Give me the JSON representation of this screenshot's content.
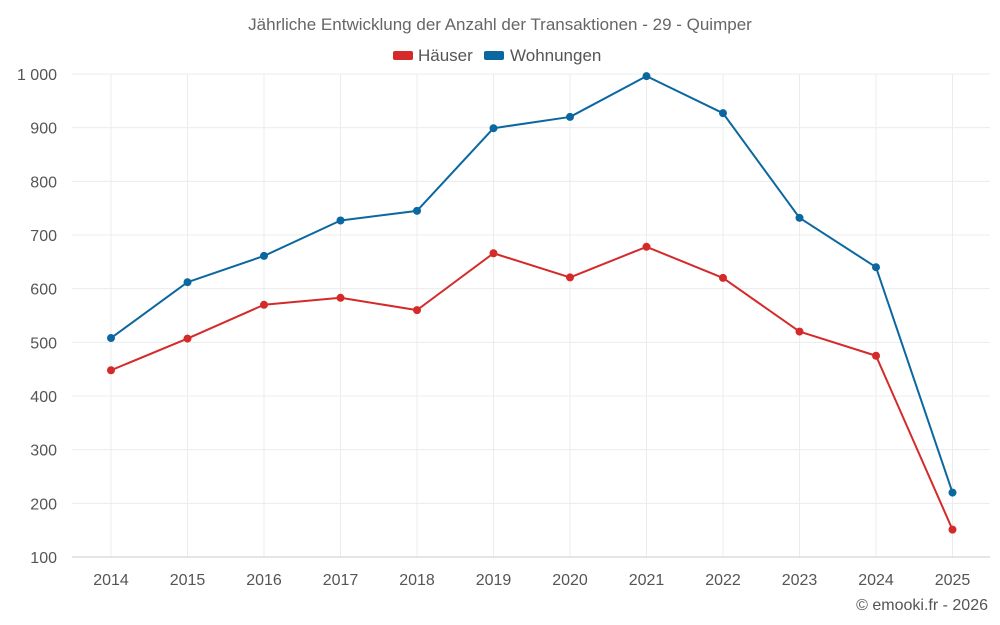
{
  "chart_data": {
    "type": "line",
    "title": "Jährliche Entwicklung der Anzahl der Transaktionen - 29 - Quimper",
    "categories": [
      "2014",
      "2015",
      "2016",
      "2017",
      "2018",
      "2019",
      "2020",
      "2021",
      "2022",
      "2023",
      "2024",
      "2025"
    ],
    "series": [
      {
        "name": "Häuser",
        "color": "#d42a2a",
        "values": [
          448,
          507,
          570,
          583,
          560,
          666,
          621,
          678,
          620,
          520,
          475,
          151
        ]
      },
      {
        "name": "Wohnungen",
        "color": "#0b67a0",
        "values": [
          508,
          612,
          661,
          727,
          745,
          899,
          920,
          996,
          927,
          732,
          640,
          220
        ]
      }
    ],
    "ylim": [
      100,
      1000
    ],
    "yticks": [
      100,
      200,
      300,
      400,
      500,
      600,
      700,
      800,
      900,
      1000
    ],
    "ytick_labels": [
      "100",
      "200",
      "300",
      "400",
      "500",
      "600",
      "700",
      "800",
      "900",
      "1 000"
    ],
    "legend_position": "top-center",
    "grid": true,
    "xlabel": "",
    "ylabel": ""
  },
  "credit": "© emooki.fr - 2026"
}
